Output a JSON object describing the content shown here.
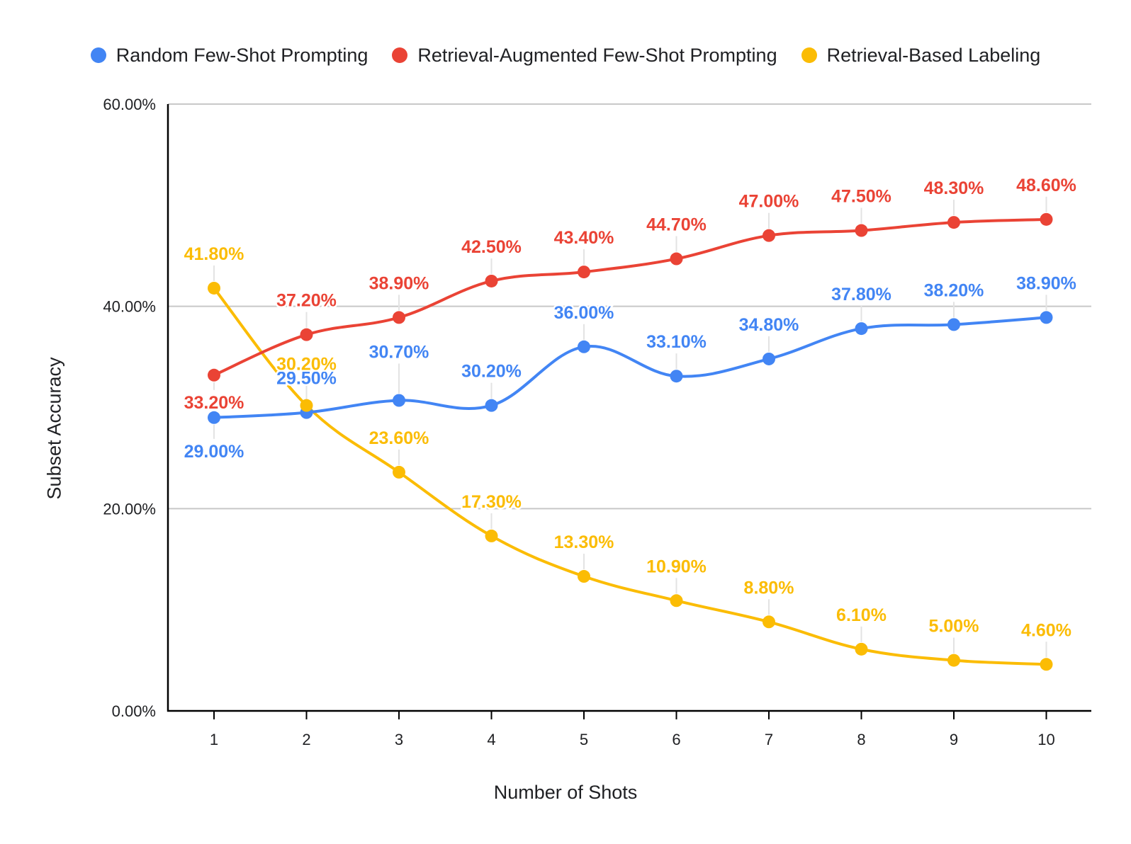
{
  "chart_data": {
    "type": "line",
    "title": "",
    "xlabel": "Number of Shots",
    "ylabel": "Subset Accuracy",
    "x": [
      1,
      2,
      3,
      4,
      5,
      6,
      7,
      8,
      9,
      10
    ],
    "ylim": [
      0,
      60
    ],
    "yticks": [
      "0.00%",
      "20.00%",
      "40.00%",
      "60.00%"
    ],
    "grid": true,
    "legend_position": "top",
    "series": [
      {
        "name": "Random Few-Shot Prompting",
        "color": "#4285F4",
        "values": [
          29.0,
          29.5,
          30.7,
          30.2,
          36.0,
          33.1,
          34.8,
          37.8,
          38.2,
          38.9
        ],
        "labels": [
          "29.00%",
          "29.50%",
          "30.70%",
          "30.20%",
          "36.00%",
          "33.10%",
          "34.80%",
          "37.80%",
          "38.20%",
          "38.90%"
        ]
      },
      {
        "name": "Retrieval-Augmented Few-Shot Prompting",
        "color": "#EA4335",
        "values": [
          33.2,
          37.2,
          38.9,
          42.5,
          43.4,
          44.7,
          47.0,
          47.5,
          48.3,
          48.6
        ],
        "labels": [
          "33.20%",
          "37.20%",
          "38.90%",
          "42.50%",
          "43.40%",
          "44.70%",
          "47.00%",
          "47.50%",
          "48.30%",
          "48.60%"
        ]
      },
      {
        "name": "Retrieval-Based Labeling",
        "color": "#FBBC04",
        "values": [
          41.8,
          30.2,
          23.6,
          17.3,
          13.3,
          10.9,
          8.8,
          6.1,
          5.0,
          4.6
        ],
        "labels": [
          "41.80%",
          "30.20%",
          "23.60%",
          "17.30%",
          "13.30%",
          "10.90%",
          "8.80%",
          "6.10%",
          "5.00%",
          "4.60%"
        ]
      }
    ]
  }
}
